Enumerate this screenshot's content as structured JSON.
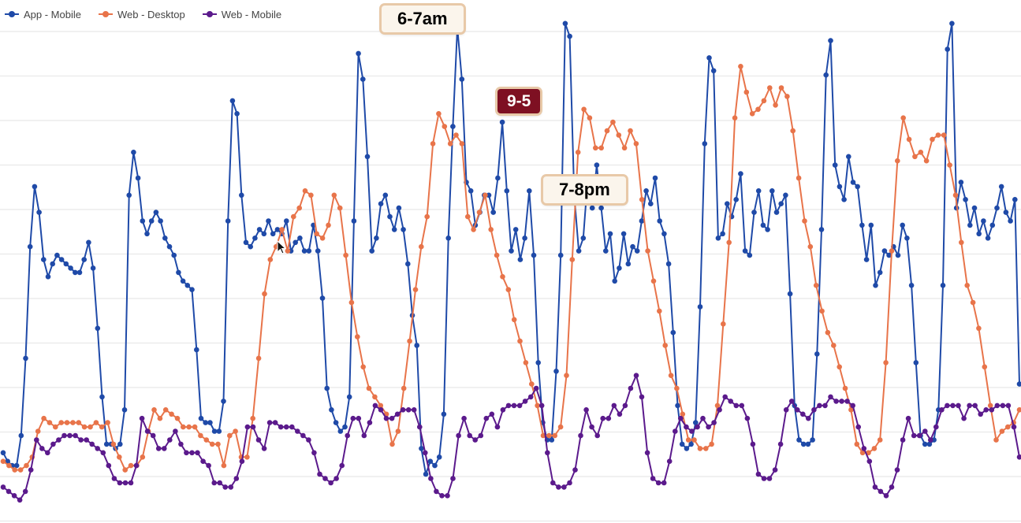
{
  "legend": {
    "items": [
      {
        "label": "App - Mobile",
        "color": "#1f4aa8"
      },
      {
        "label": "Web - Desktop",
        "color": "#e8744a"
      },
      {
        "label": "Web - Mobile",
        "color": "#5b1a8c"
      }
    ]
  },
  "callouts": {
    "morning": "6-7am",
    "work": "9-5",
    "evening": "7-8pm"
  },
  "chart_data": {
    "type": "line",
    "grid": true,
    "legend_position": "top-left",
    "ylim": [
      0,
      100
    ],
    "series": [
      {
        "name": "App - Mobile",
        "color": "#1f4aa8",
        "values": [
          16,
          14,
          13,
          13,
          20,
          38,
          64,
          78,
          72,
          61,
          57,
          60,
          62,
          61,
          60,
          59,
          58,
          58,
          61,
          65,
          59,
          45,
          29,
          18,
          18,
          17,
          18,
          26,
          76,
          86,
          80,
          70,
          67,
          70,
          72,
          70,
          66,
          64,
          62,
          58,
          56,
          55,
          54,
          40,
          24,
          23,
          23,
          21,
          21,
          28,
          70,
          98,
          95,
          76,
          65,
          64,
          66,
          68,
          67,
          70,
          67,
          68,
          67,
          70,
          63,
          65,
          66,
          63,
          63,
          69,
          63,
          52,
          31,
          26,
          23,
          21,
          22,
          29,
          70,
          109,
          103,
          85,
          63,
          66,
          74,
          76,
          71,
          68,
          73,
          68,
          60,
          48,
          41,
          17,
          11,
          14,
          13,
          15,
          25,
          66,
          92,
          115,
          103,
          79,
          77,
          69,
          72,
          76,
          76,
          72,
          80,
          93,
          77,
          63,
          68,
          61,
          66,
          77,
          62,
          37,
          23,
          19,
          19,
          35,
          62,
          116,
          113,
          76,
          63,
          66,
          80,
          73,
          83,
          73,
          63,
          67,
          56,
          59,
          67,
          60,
          64,
          63,
          70,
          77,
          74,
          80,
          70,
          67,
          60,
          44,
          27,
          18,
          17,
          18,
          23,
          50,
          88,
          108,
          105,
          66,
          67,
          74,
          71,
          75,
          81,
          63,
          62,
          72,
          77,
          69,
          68,
          77,
          72,
          74,
          76,
          53,
          27,
          19,
          18,
          18,
          19,
          39,
          68,
          104,
          112,
          83,
          78,
          75,
          85,
          79,
          78,
          69,
          61,
          69,
          55,
          58,
          63,
          62,
          64,
          62,
          69,
          66,
          55,
          37,
          20,
          18,
          18,
          19,
          26,
          55,
          110,
          116,
          73,
          79,
          75,
          69,
          73,
          67,
          70,
          66,
          69,
          73,
          78,
          72,
          70,
          75,
          32
        ]
      },
      {
        "name": "Web - Desktop",
        "color": "#e8744a",
        "values": [
          14,
          13,
          12,
          12,
          13,
          15,
          21,
          24,
          23,
          22,
          23,
          23,
          23,
          23,
          22,
          22,
          23,
          22,
          23,
          18,
          15,
          12,
          13,
          13,
          15,
          21,
          26,
          24,
          26,
          25,
          24,
          22,
          22,
          22,
          20,
          19,
          18,
          18,
          13,
          20,
          21,
          15,
          15,
          24,
          38,
          53,
          61,
          64,
          68,
          63,
          71,
          73,
          77,
          76,
          67,
          66,
          69,
          76,
          73,
          62,
          51,
          43,
          36,
          31,
          29,
          27,
          25,
          18,
          21,
          31,
          42,
          54,
          64,
          71,
          88,
          95,
          92,
          88,
          90,
          88,
          71,
          68,
          72,
          76,
          68,
          62,
          57,
          54,
          47,
          42,
          37,
          32,
          27,
          20,
          20,
          20,
          22,
          34,
          61,
          86,
          96,
          94,
          87,
          87,
          91,
          93,
          90,
          87,
          91,
          88,
          75,
          63,
          56,
          49,
          41,
          34,
          31,
          25,
          19,
          19,
          17,
          17,
          18,
          27,
          46,
          65,
          94,
          106,
          100,
          95,
          96,
          98,
          101,
          97,
          101,
          99,
          91,
          80,
          70,
          64,
          55,
          49,
          44,
          41,
          36,
          31,
          26,
          18,
          16,
          16,
          17,
          19,
          37,
          63,
          84,
          94,
          89,
          85,
          86,
          84,
          89,
          90,
          90,
          83,
          76,
          65,
          55,
          51,
          45,
          36,
          27,
          19,
          21,
          22,
          23,
          26
        ]
      },
      {
        "name": "Web - Mobile",
        "color": "#5b1a8c",
        "values": [
          8,
          7,
          6,
          5,
          7,
          12,
          19,
          17,
          16,
          18,
          19,
          20,
          20,
          20,
          19,
          19,
          18,
          17,
          16,
          13,
          10,
          9,
          9,
          9,
          13,
          24,
          21,
          20,
          17,
          17,
          19,
          21,
          18,
          16,
          16,
          16,
          14,
          13,
          9,
          9,
          8,
          8,
          10,
          14,
          22,
          22,
          19,
          17,
          23,
          23,
          22,
          22,
          22,
          21,
          20,
          19,
          16,
          11,
          10,
          9,
          10,
          13,
          20,
          24,
          24,
          20,
          23,
          27,
          26,
          24,
          24,
          25,
          26,
          26,
          26,
          22,
          16,
          10,
          7,
          6,
          6,
          10,
          20,
          24,
          20,
          19,
          20,
          24,
          25,
          22,
          26,
          27,
          27,
          27,
          28,
          29,
          31,
          27,
          16,
          9,
          8,
          8,
          9,
          12,
          20,
          26,
          22,
          20,
          24,
          24,
          27,
          25,
          27,
          31,
          34,
          29,
          16,
          10,
          9,
          9,
          14,
          21,
          24,
          22,
          21,
          22,
          24,
          22,
          23,
          26,
          29,
          28,
          27,
          27,
          24,
          18,
          11,
          10,
          10,
          12,
          18,
          26,
          28,
          26,
          25,
          24,
          26,
          27,
          27,
          29,
          28,
          28,
          28,
          27,
          22,
          17,
          14,
          8,
          7,
          6,
          8,
          12,
          19,
          24,
          20,
          20,
          21,
          19,
          22,
          26,
          27,
          27,
          27,
          24,
          27,
          27,
          25,
          26,
          26,
          27,
          27,
          27,
          22,
          15
        ]
      }
    ]
  }
}
